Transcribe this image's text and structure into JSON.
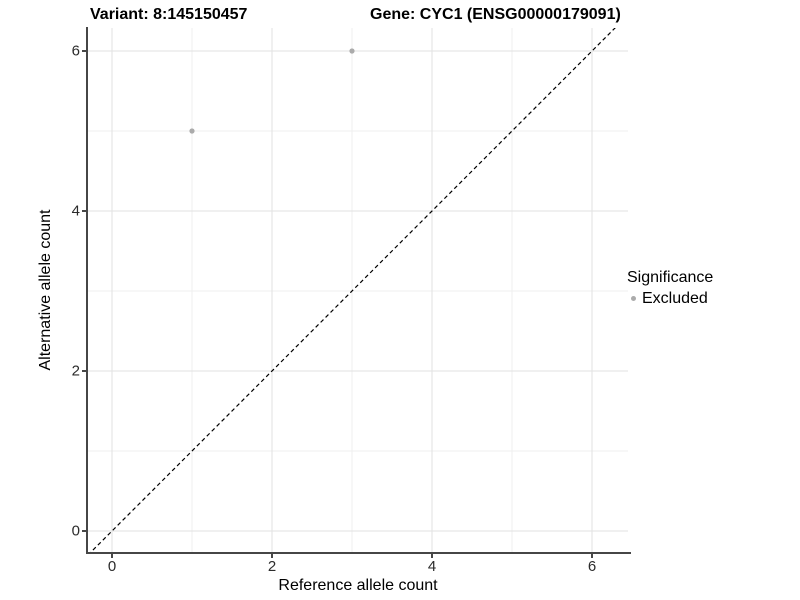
{
  "titles": {
    "variant": "Variant: 8:145150457",
    "gene": "Gene: CYC1 (ENSG00000179091)"
  },
  "axes": {
    "x": {
      "label": "Reference allele count"
    },
    "y": {
      "label": "Alternative allele count"
    }
  },
  "legend": {
    "title": "Significance",
    "items": [
      {
        "label": "Excluded",
        "color": "#ababab"
      }
    ]
  },
  "colors": {
    "axis_line": "#464646",
    "grid_major": "#e2e2e2",
    "grid_minor": "#efefef",
    "point": "#ababab",
    "identity_line": "#000000"
  },
  "chart_data": {
    "type": "scatter",
    "title": "Variant: 8:145150457 — Gene: CYC1 (ENSG00000179091)",
    "xlabel": "Reference allele count",
    "ylabel": "Alternative allele count",
    "xlim": [
      -0.3,
      6.45
    ],
    "ylim": [
      -0.2625,
      6.2875
    ],
    "x_ticks": [
      0,
      2,
      4,
      6
    ],
    "y_ticks": [
      0,
      2,
      4,
      6
    ],
    "x_minor_ticks": [
      1,
      3,
      5
    ],
    "y_minor_ticks": [
      1,
      3,
      5
    ],
    "grid": true,
    "legend_position": "right",
    "series": [
      {
        "name": "Excluded",
        "color": "#ababab",
        "points": [
          {
            "x": 1,
            "y": 5
          },
          {
            "x": 3,
            "y": 6
          }
        ]
      }
    ],
    "reference_line": {
      "type": "identity",
      "style": "dashed",
      "color": "#000000"
    }
  }
}
